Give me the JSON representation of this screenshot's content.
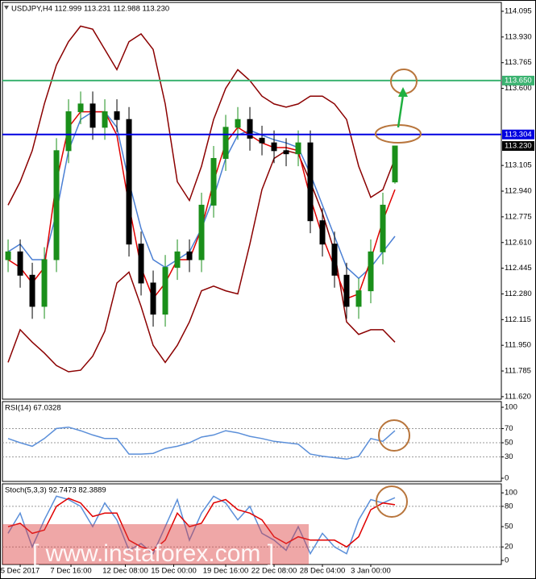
{
  "chart_data": [
    {
      "type": "candlestick",
      "title": "USDJPY,H4  112.999 113.231 112.988 113.230",
      "open": [
        112.5,
        112.55,
        112.4,
        112.2,
        112.5,
        113.2,
        113.45,
        113.5,
        113.35,
        113.45,
        113.4,
        112.6,
        112.35,
        112.15,
        112.45,
        112.55,
        112.5,
        112.85,
        113.15,
        113.35,
        113.4,
        113.28,
        113.25,
        113.2,
        113.18,
        113.25,
        112.75,
        112.6,
        112.4,
        112.2,
        112.3,
        112.55,
        112.999
      ],
      "high": [
        112.63,
        112.63,
        112.48,
        112.58,
        113.28,
        113.53,
        113.58,
        113.58,
        113.53,
        113.53,
        113.48,
        112.68,
        112.43,
        112.53,
        112.63,
        112.63,
        112.93,
        113.23,
        113.43,
        113.48,
        113.48,
        113.36,
        113.33,
        113.28,
        113.33,
        113.33,
        112.83,
        112.68,
        112.48,
        112.38,
        112.63,
        112.93,
        113.231
      ],
      "low": [
        112.42,
        112.32,
        112.12,
        112.12,
        112.42,
        113.12,
        113.37,
        113.27,
        113.27,
        113.32,
        112.52,
        112.27,
        112.07,
        112.07,
        112.37,
        112.42,
        112.42,
        112.77,
        113.07,
        113.27,
        113.2,
        113.17,
        113.12,
        113.1,
        113.1,
        112.67,
        112.52,
        112.32,
        112.12,
        112.12,
        112.22,
        112.47,
        112.988
      ],
      "close": [
        112.55,
        112.4,
        112.2,
        112.5,
        113.2,
        113.45,
        113.5,
        113.35,
        113.45,
        113.4,
        112.6,
        112.35,
        112.15,
        112.45,
        112.55,
        112.5,
        112.85,
        113.15,
        113.35,
        113.4,
        113.28,
        113.25,
        113.2,
        113.18,
        113.25,
        112.75,
        112.6,
        112.4,
        112.2,
        112.3,
        112.55,
        112.85,
        113.23
      ],
      "up_color": "#1a8f1a",
      "down_color": "#000000",
      "series": [
        {
          "color": "#8b0000",
          "values": [
            112.85,
            113.0,
            113.2,
            113.5,
            113.75,
            113.9,
            114.0,
            113.98,
            113.85,
            113.72,
            113.9,
            113.95,
            113.85,
            113.5,
            113.0,
            112.88,
            113.1,
            113.4,
            113.6,
            113.72,
            113.65,
            113.55,
            113.5,
            113.48,
            113.5,
            113.55,
            113.55,
            113.5,
            113.4,
            113.1,
            112.9,
            112.95,
            113.15
          ]
        },
        {
          "color": "#8b0000",
          "values": [
            111.84,
            112.05,
            111.97,
            111.9,
            111.82,
            111.78,
            111.79,
            111.88,
            112.04,
            112.35,
            112.42,
            112.2,
            111.95,
            111.84,
            111.95,
            112.1,
            112.3,
            112.33,
            112.3,
            112.28,
            112.6,
            112.95,
            113.15,
            113.2,
            113.18,
            113.0,
            112.8,
            112.55,
            112.1,
            112.02,
            112.05,
            112.05,
            111.97
          ]
        },
        {
          "color": "#4a7fd4",
          "values": [
            112.55,
            112.6,
            112.5,
            112.5,
            112.8,
            113.2,
            113.4,
            113.45,
            113.45,
            113.35,
            113.0,
            112.7,
            112.5,
            112.45,
            112.5,
            112.55,
            112.7,
            112.9,
            113.15,
            113.3,
            113.33,
            113.3,
            113.27,
            113.25,
            113.22,
            113.05,
            112.85,
            112.65,
            112.45,
            112.38,
            112.45,
            112.55,
            112.65
          ]
        },
        {
          "color": "#e00000",
          "values": [
            112.5,
            112.45,
            112.35,
            112.45,
            113.0,
            113.35,
            113.45,
            113.45,
            113.45,
            113.3,
            112.85,
            112.45,
            112.25,
            112.35,
            112.5,
            112.5,
            112.7,
            113.0,
            113.25,
            113.35,
            113.3,
            113.25,
            113.22,
            113.22,
            113.2,
            112.9,
            112.65,
            112.45,
            112.25,
            112.28,
            112.5,
            112.75,
            112.95
          ]
        }
      ],
      "xlim": [
        -0.47,
        40.8
      ],
      "xticks": [
        {
          "value": 1,
          "label": "5 Dec 2017"
        },
        {
          "value": 5.2,
          "label": "7 Dec 16:00"
        },
        {
          "value": 9.7,
          "label": "12 Dec 08:00"
        },
        {
          "value": 13.7,
          "label": "15 Dec 00:00"
        },
        {
          "value": 18,
          "label": "19 Dec 16:00"
        },
        {
          "value": 22,
          "label": "22 Dec 08:00"
        },
        {
          "value": 26,
          "label": "28 Dec 04:00"
        },
        {
          "value": 30,
          "label": "3 Jan 00:00"
        }
      ],
      "ylim": [
        111.604,
        114.152
      ],
      "yticks": [
        114.095,
        {
          "value": 113.93,
          "label": "113.930"
        },
        113.765,
        {
          "value": 113.6,
          "label": "113.600"
        },
        113.105,
        {
          "value": 112.94,
          "label": "112.940"
        },
        112.775,
        {
          "value": 112.61,
          "label": "112.610"
        },
        112.445,
        {
          "value": 112.28,
          "label": "112.280"
        },
        112.115,
        {
          "value": 111.95,
          "label": "111.950"
        },
        111.785,
        {
          "value": 111.62,
          "label": "111.620"
        }
      ],
      "hlines": [
        {
          "value": 113.65,
          "label": "113.650",
          "color": "#3cb371"
        },
        {
          "value": 113.304,
          "label": "113.304",
          "color": "#0000e0"
        }
      ],
      "last_price": {
        "value": 113.23,
        "label": "113.230"
      },
      "watermark": "[ www.instaforex.com ]"
    },
    {
      "type": "line",
      "title": "RSI(14) 67.0328",
      "series": [
        {
          "color": "#5b8fd9",
          "values": [
            56,
            50,
            45,
            56,
            70,
            72,
            67,
            61,
            56,
            56,
            34,
            34,
            35,
            42,
            45,
            50,
            58,
            61,
            67,
            64,
            59,
            56,
            52,
            50,
            48,
            34,
            31,
            29,
            27,
            31,
            56,
            52,
            67.0328
          ]
        }
      ],
      "ylim": [
        -4.5,
        108
      ],
      "yticks": [
        100,
        70,
        50,
        30,
        0
      ],
      "levels": [
        70,
        50,
        30
      ]
    },
    {
      "type": "line",
      "title": "Stoch(5,3,3) 92.7473 82.3889",
      "series": [
        {
          "color": "#5b8fd9",
          "values": [
            40,
            70,
            20,
            60,
            95,
            90,
            80,
            50,
            85,
            60,
            15,
            25,
            10,
            50,
            90,
            30,
            70,
            95,
            85,
            60,
            80,
            40,
            30,
            15,
            50,
            10,
            40,
            20,
            10,
            60,
            90,
            85,
            92.7473
          ]
        },
        {
          "color": "#e00000",
          "values": [
            50,
            55,
            40,
            45,
            80,
            92,
            85,
            65,
            70,
            70,
            30,
            20,
            15,
            30,
            70,
            50,
            55,
            85,
            90,
            75,
            70,
            60,
            35,
            25,
            35,
            30,
            30,
            30,
            20,
            35,
            75,
            85,
            82.3889
          ]
        }
      ],
      "ylim": [
        -6,
        113.3
      ],
      "yticks": [
        100,
        80,
        50,
        20,
        0
      ],
      "levels": [
        80,
        20
      ]
    }
  ]
}
